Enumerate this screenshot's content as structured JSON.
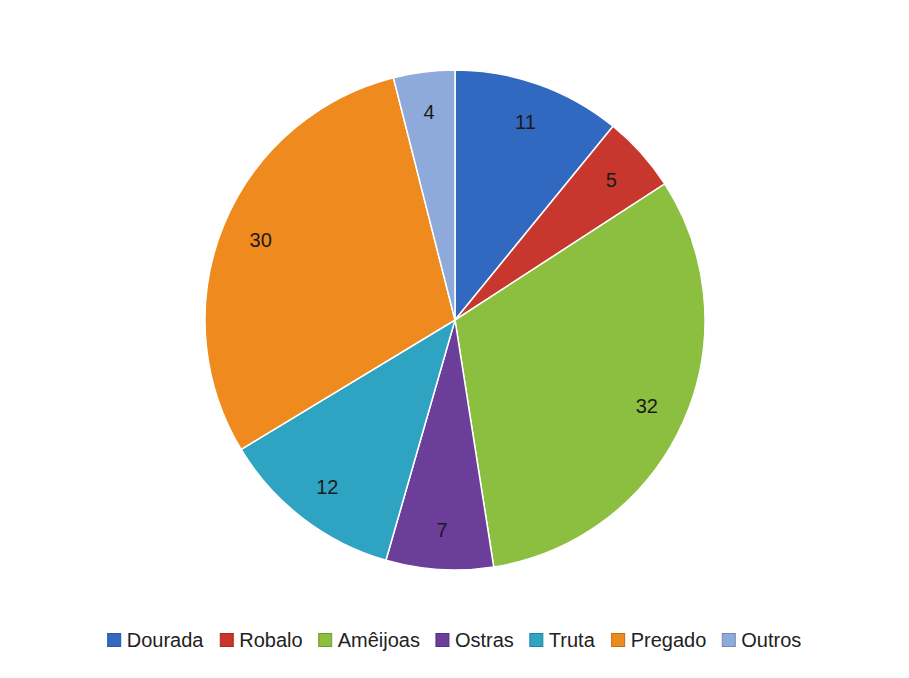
{
  "chart_data": {
    "type": "pie",
    "categories": [
      "Dourada",
      "Robalo",
      "Amêijoas",
      "Ostras",
      "Truta",
      "Pregado",
      "Outros"
    ],
    "values": [
      11,
      5,
      32,
      7,
      12,
      30,
      4
    ],
    "colors": [
      "#3169c0",
      "#c8372d",
      "#8cbf3f",
      "#6b3f99",
      "#2ea3c2",
      "#ef8a1e",
      "#8eaadb"
    ],
    "data_labels": true,
    "legend": "bottom"
  }
}
